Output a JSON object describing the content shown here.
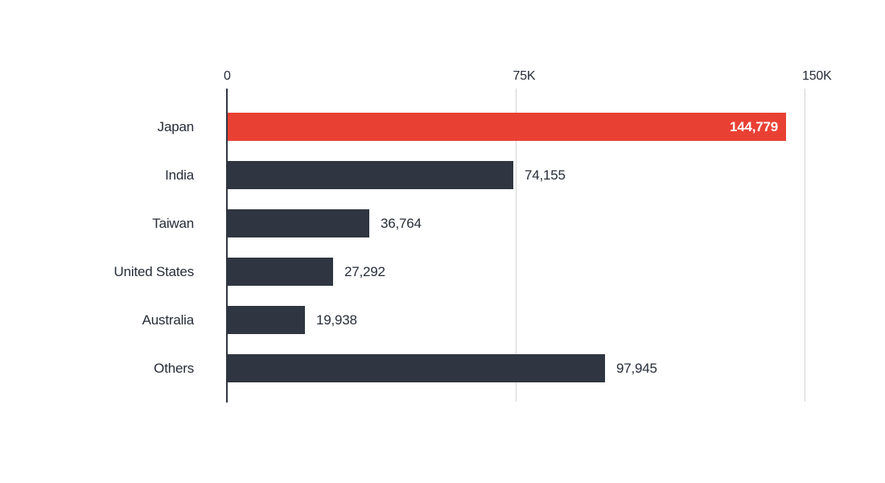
{
  "chart_data": {
    "type": "bar",
    "orientation": "horizontal",
    "title": "",
    "categories": [
      "Japan",
      "India",
      "Taiwan",
      "United States",
      "Australia",
      "Others"
    ],
    "values": [
      144779,
      74155,
      36764,
      27292,
      19938,
      97945
    ],
    "value_labels": [
      "144,779",
      "74,155",
      "36,764",
      "27,292",
      "19,938",
      "97,945"
    ],
    "highlight_index": 0,
    "highlight_value_label_position": "inside-end",
    "other_value_label_position": "outside-end",
    "xlim": [
      0,
      150000
    ],
    "x_ticks": [
      {
        "value": 0,
        "label": "0"
      },
      {
        "value": 75000,
        "label": "75K"
      },
      {
        "value": 150000,
        "label": "150K"
      }
    ],
    "grid": "vertical-gridlines-at-ticks",
    "legend": "none",
    "colors": {
      "highlight_bar": "#e94034",
      "default_bar": "#2f3641",
      "axis_line": "#2f3641",
      "gridline": "#d4d4d4",
      "text": "#262d38",
      "value_inside_text": "#ffffff",
      "background": "#ffffff"
    }
  }
}
